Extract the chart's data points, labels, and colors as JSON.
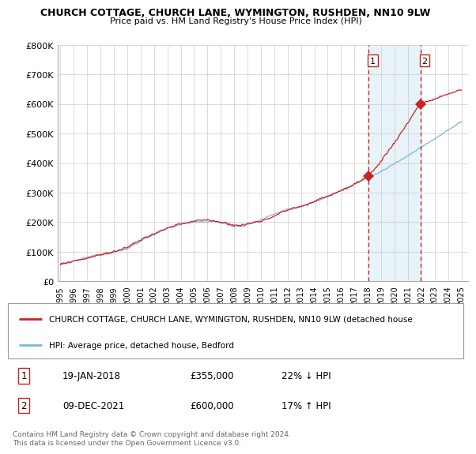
{
  "title": "CHURCH COTTAGE, CHURCH LANE, WYMINGTON, RUSHDEN, NN10 9LW",
  "subtitle": "Price paid vs. HM Land Registry's House Price Index (HPI)",
  "ylim": [
    0,
    800000
  ],
  "yticks": [
    0,
    100000,
    200000,
    300000,
    400000,
    500000,
    600000,
    700000,
    800000
  ],
  "ytick_labels": [
    "£0",
    "£100K",
    "£200K",
    "£300K",
    "£400K",
    "£500K",
    "£600K",
    "£700K",
    "£800K"
  ],
  "sale1_date": 2018.05,
  "sale1_price": 355000,
  "sale2_date": 2021.93,
  "sale2_price": 600000,
  "hpi_color": "#7bb8d4",
  "hpi_fill_color": "#ddeef6",
  "sale_color": "#cc2222",
  "vline_color": "#cc2222",
  "background_color": "#ffffff",
  "grid_color": "#cccccc",
  "legend_text1": "CHURCH COTTAGE, CHURCH LANE, WYMINGTON, RUSHDEN, NN10 9LW (detached house",
  "legend_text2": "HPI: Average price, detached house, Bedford",
  "table_row1": [
    "1",
    "19-JAN-2018",
    "£355,000",
    "22% ↓ HPI"
  ],
  "table_row2": [
    "2",
    "09-DEC-2021",
    "£600,000",
    "17% ↑ HPI"
  ],
  "footnote": "Contains HM Land Registry data © Crown copyright and database right 2024.\nThis data is licensed under the Open Government Licence v3.0."
}
